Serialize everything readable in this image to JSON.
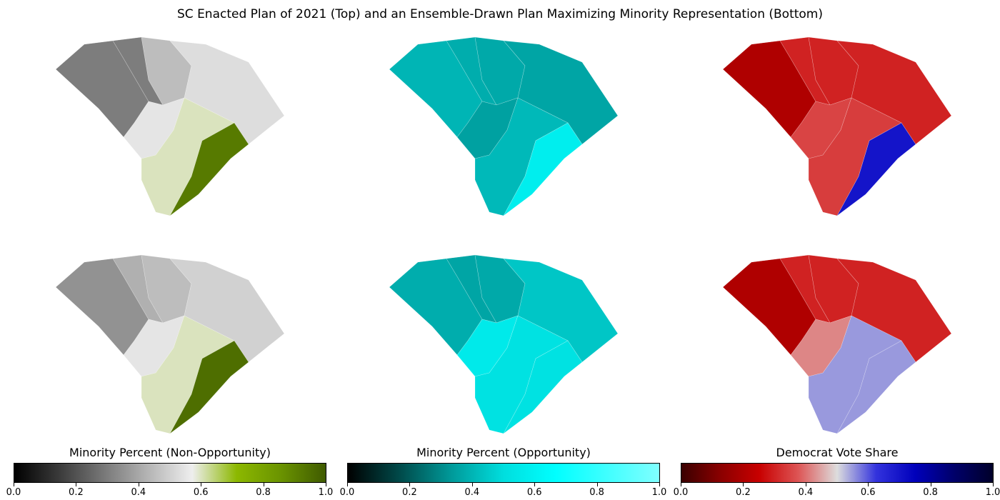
{
  "title": "SC Enacted Plan of 2021 (Top) and an Ensemble-Drawn Plan Maximizing Minority Representation (Bottom)",
  "chart_data": [
    {
      "type": "heatmap",
      "name": "enacted-plan-non-opportunity",
      "colorbar": "Minority Percent (Non-Opportunity)",
      "district_values": [
        0.3,
        0.3,
        0.45,
        0.53,
        0.55,
        0.6,
        0.92
      ]
    },
    {
      "type": "heatmap",
      "name": "enacted-plan-opportunity",
      "colorbar": "Minority Percent (Opportunity)",
      "district_values": [
        0.4,
        0.38,
        0.37,
        0.36,
        0.35,
        0.41,
        0.58
      ]
    },
    {
      "type": "heatmap",
      "name": "enacted-plan-democrat",
      "colorbar": "Democrat Vote Share",
      "district_values": [
        0.2,
        0.3,
        0.3,
        0.3,
        0.35,
        0.34,
        0.7
      ]
    },
    {
      "type": "heatmap",
      "name": "ensemble-plan-non-opportunity",
      "colorbar": "Minority Percent (Non-Opportunity)",
      "district_values": [
        0.35,
        0.42,
        0.45,
        0.5,
        0.55,
        0.6,
        0.95
      ]
    },
    {
      "type": "heatmap",
      "name": "ensemble-plan-opportunity",
      "colorbar": "Minority Percent (Opportunity)",
      "district_values": [
        0.38,
        0.36,
        0.37,
        0.44,
        0.56,
        0.52,
        0.52
      ]
    },
    {
      "type": "heatmap",
      "name": "ensemble-plan-democrat",
      "colorbar": "Democrat Vote Share",
      "district_values": [
        0.2,
        0.3,
        0.3,
        0.3,
        0.42,
        0.55,
        0.55
      ]
    }
  ],
  "colorbars": [
    {
      "label": "Minority Percent (Non-Opportunity)",
      "ticks": [
        "0.0",
        "0.2",
        "0.4",
        "0.6",
        "0.8",
        "1.0"
      ],
      "stops": [
        "#000000",
        "#3a3a3a",
        "#777777",
        "#b4b4b4",
        "#eeeeee",
        "#8cb800",
        "#6a9300",
        "#3f5a00"
      ]
    },
    {
      "label": "Minority Percent (Opportunity)",
      "ticks": [
        "0.0",
        "0.2",
        "0.4",
        "0.6",
        "0.8",
        "1.0"
      ],
      "stops": [
        "#000000",
        "#004a4a",
        "#009a9a",
        "#00dede",
        "#00ffff",
        "#40ffff",
        "#80ffff"
      ]
    },
    {
      "label": "Democrat Vote Share",
      "ticks": [
        "0.0",
        "0.2",
        "0.4",
        "0.6",
        "0.8",
        "1.0"
      ],
      "stops": [
        "#3a0000",
        "#8a0000",
        "#c80000",
        "#dd5555",
        "#dddddd",
        "#3333dd",
        "#0000bb",
        "#00006a",
        "#00002a"
      ]
    }
  ]
}
